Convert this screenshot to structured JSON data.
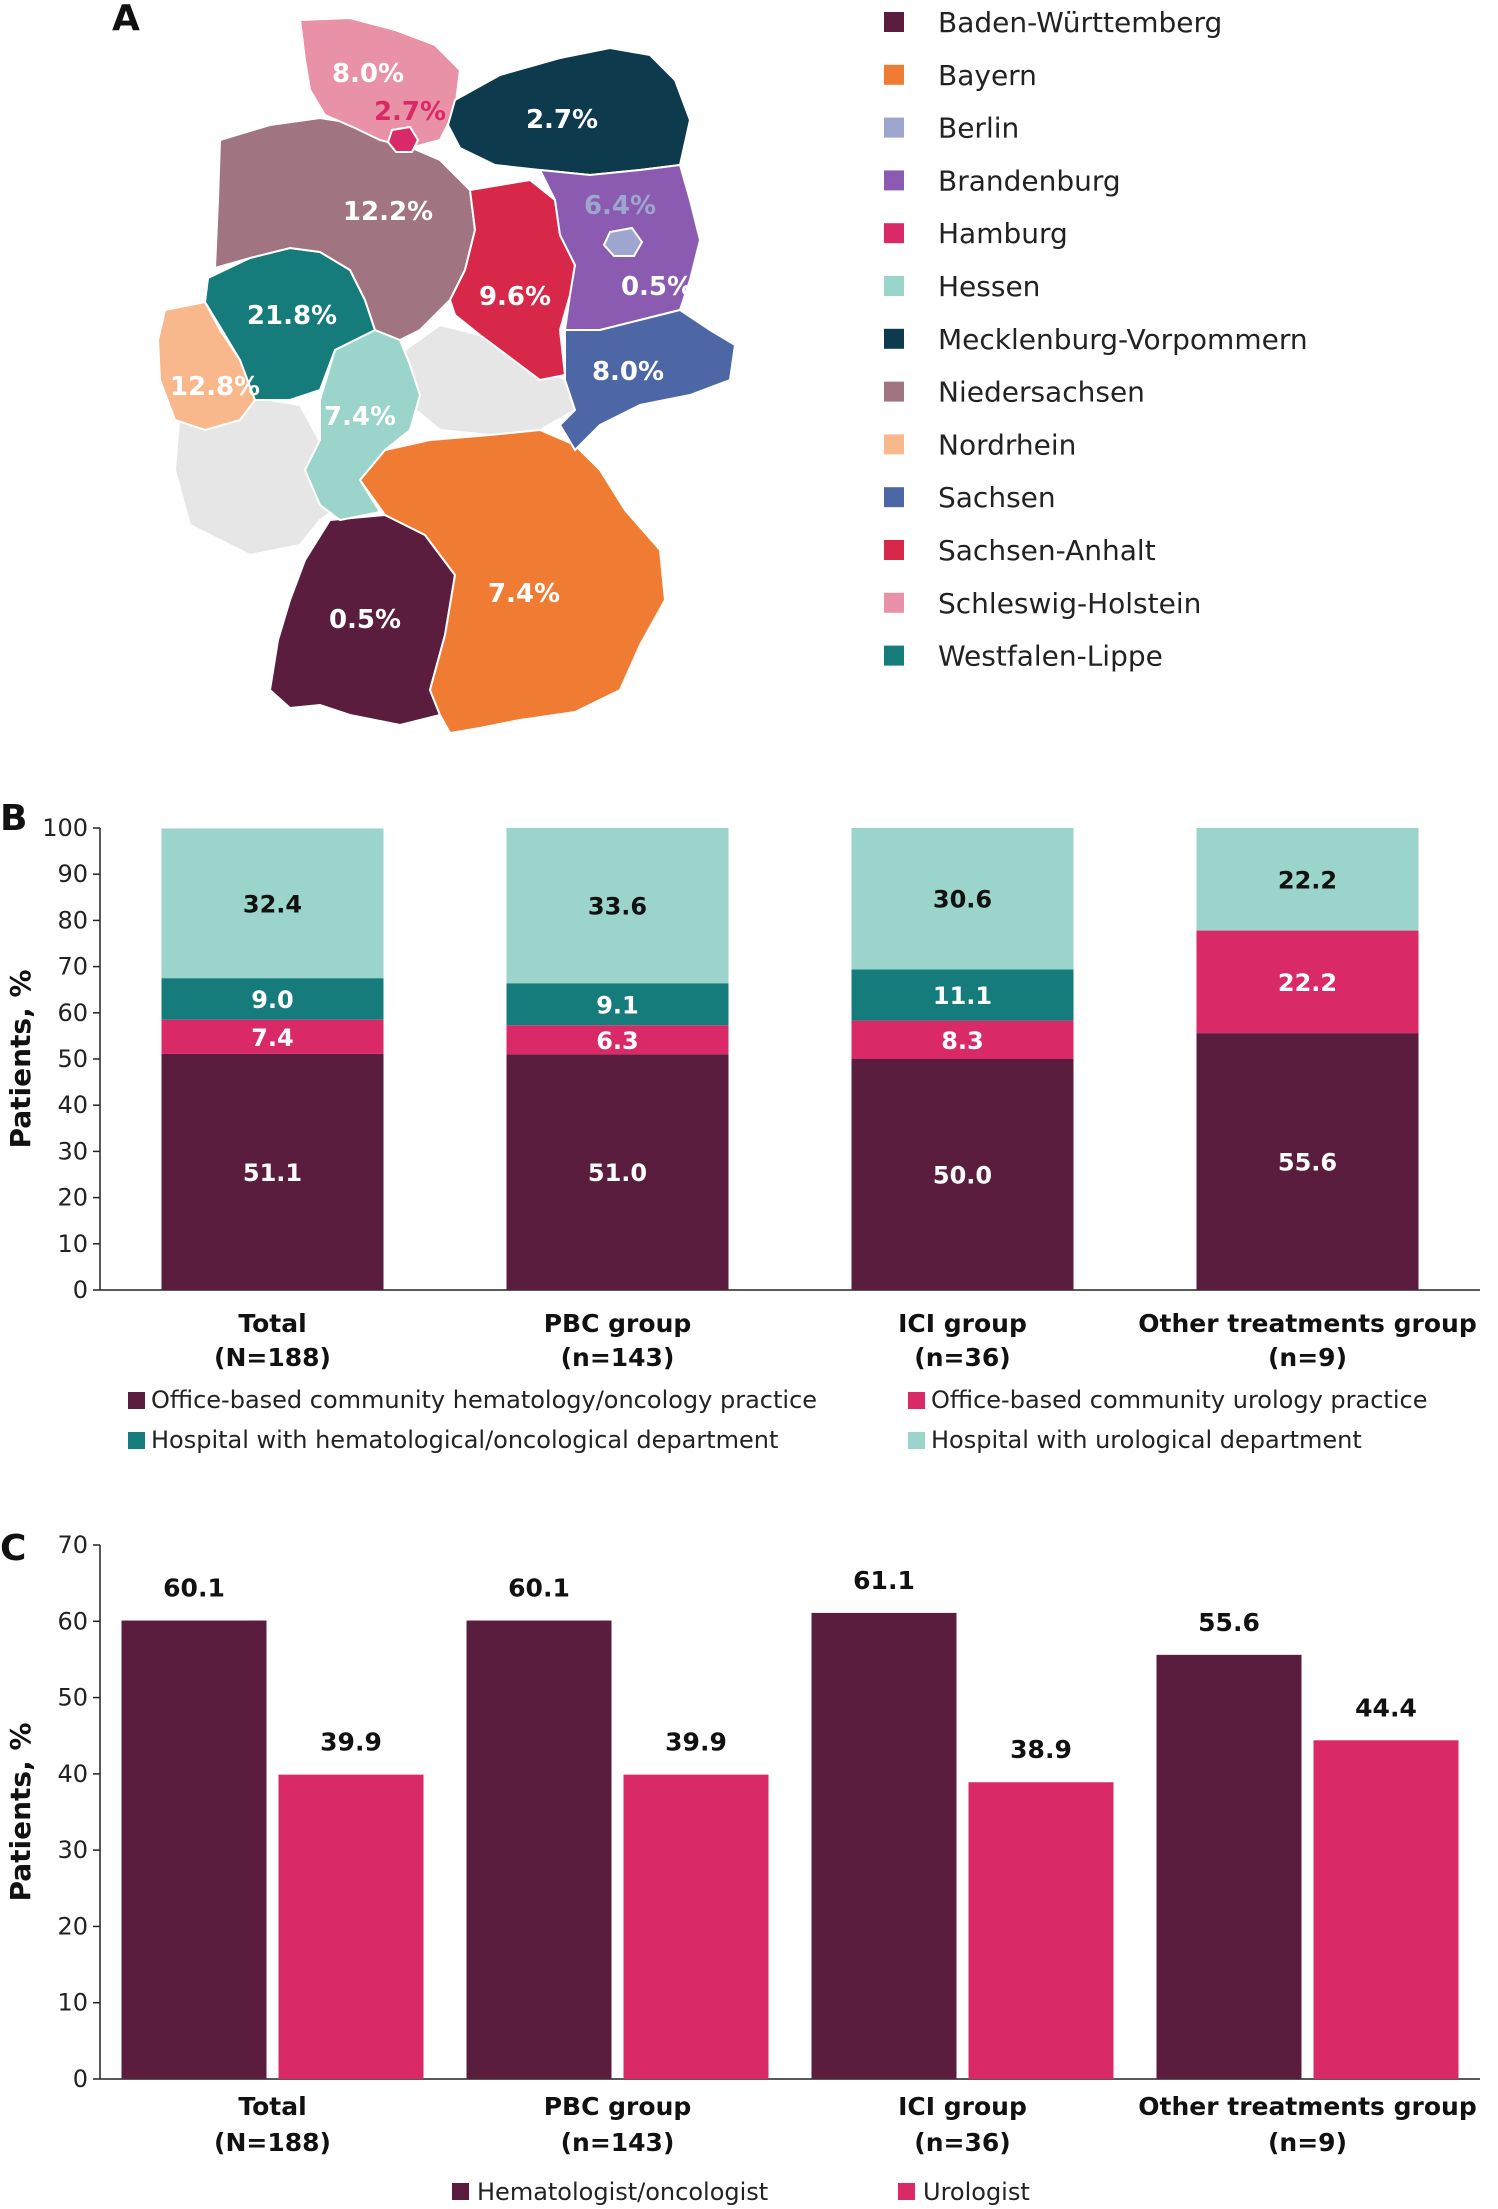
{
  "colors": {
    "baden_wuerttemberg": "#5a1d3e",
    "bayern": "#f07c34",
    "berlin": "#9ea5cf",
    "brandenburg": "#8b5bb1",
    "hamburg": "#d92a67",
    "hessen": "#9ad4cb",
    "mecklenburg": "#0e3a4e",
    "niedersachsen": "#a07480",
    "nordrhein": "#f9b88c",
    "sachsen": "#4d66a5",
    "sachsen_anhalt": "#d8284a",
    "schleswig": "#e991a7",
    "westfalen": "#167b7b",
    "no_data": "#e6e6e6",
    "hema_practice": "#5a1d3e",
    "uro_practice": "#d92a67",
    "hema_hospital": "#167b7b",
    "uro_hospital": "#9ad4cb",
    "hematologist": "#5a1d3e",
    "urologist": "#d92a67"
  },
  "panels": {
    "a": "A",
    "b": "B",
    "c": "C"
  },
  "map": {
    "legend": [
      {
        "name": "Baden-Württemberg",
        "color_key": "baden_wuerttemberg"
      },
      {
        "name": "Bayern",
        "color_key": "bayern"
      },
      {
        "name": "Berlin",
        "color_key": "berlin"
      },
      {
        "name": "Brandenburg",
        "color_key": "brandenburg"
      },
      {
        "name": "Hamburg",
        "color_key": "hamburg"
      },
      {
        "name": "Hessen",
        "color_key": "hessen"
      },
      {
        "name": "Mecklenburg-Vorpommern",
        "color_key": "mecklenburg"
      },
      {
        "name": "Niedersachsen",
        "color_key": "niedersachsen"
      },
      {
        "name": "Nordrhein",
        "color_key": "nordrhein"
      },
      {
        "name": "Sachsen",
        "color_key": "sachsen"
      },
      {
        "name": "Sachsen-Anhalt",
        "color_key": "sachsen_anhalt"
      },
      {
        "name": "Schleswig-Holstein",
        "color_key": "schleswig"
      },
      {
        "name": "Westfalen-Lippe",
        "color_key": "westfalen"
      }
    ],
    "region_values": {
      "schleswig": "8.0%",
      "hamburg": "2.7%",
      "mecklenburg": "2.7%",
      "niedersachsen": "12.2%",
      "berlin": "6.4%",
      "brandenburg": "0.5%",
      "sachsen_anhalt": "9.6%",
      "westfalen": "21.8%",
      "nordrhein": "12.8%",
      "sachsen": "8.0%",
      "hessen": "7.4%",
      "baden_wuerttemberg": "0.5%",
      "bayern": "7.4%"
    }
  },
  "chart_data": [
    {
      "type": "bar",
      "stacked": true,
      "panel": "B",
      "categories": [
        "Total",
        "PBC group",
        "ICI group",
        "Other treatments group"
      ],
      "category_n": [
        "(N=188)",
        "(n=143)",
        "(n=36)",
        "(n=9)"
      ],
      "series": [
        {
          "name": "Office-based community hematology/oncology practice",
          "color_key": "hema_practice",
          "values": [
            51.1,
            51.0,
            50.0,
            55.6
          ],
          "labels": [
            "51.1",
            "51.0",
            "50.0",
            "55.6"
          ]
        },
        {
          "name": "Office-based community urology practice",
          "color_key": "uro_practice",
          "values": [
            7.4,
            6.3,
            8.3,
            22.2
          ],
          "labels": [
            "7.4",
            "6.3",
            "8.3",
            "22.2"
          ]
        },
        {
          "name": "Hospital with hematological/oncological department",
          "color_key": "hema_hospital",
          "values": [
            9.0,
            9.1,
            11.1,
            0
          ],
          "labels": [
            "9.0",
            "9.1",
            "11.1",
            ""
          ]
        },
        {
          "name": "Hospital with urological department",
          "color_key": "uro_hospital",
          "values": [
            32.4,
            33.6,
            30.6,
            22.2
          ],
          "labels": [
            "32.4",
            "33.6",
            "30.6",
            "22.2"
          ]
        }
      ],
      "ylabel": "Patients, %",
      "ylim": [
        0,
        100
      ],
      "yticks": [
        0,
        10,
        20,
        30,
        40,
        50,
        60,
        70,
        80,
        90,
        100
      ],
      "legend_placement": "bottom"
    },
    {
      "type": "bar",
      "stacked": false,
      "panel": "C",
      "categories": [
        "Total",
        "PBC group",
        "ICI group",
        "Other treatments group"
      ],
      "category_n": [
        "(N=188)",
        "(n=143)",
        "(n=36)",
        "(n=9)"
      ],
      "series": [
        {
          "name": "Hematologist/oncologist",
          "color_key": "hematologist",
          "values": [
            60.1,
            60.1,
            61.1,
            55.6
          ],
          "labels": [
            "60.1",
            "60.1",
            "61.1",
            "55.6"
          ]
        },
        {
          "name": "Urologist",
          "color_key": "urologist",
          "values": [
            39.9,
            39.9,
            38.9,
            44.4
          ],
          "labels": [
            "39.9",
            "39.9",
            "38.9",
            "44.4"
          ]
        }
      ],
      "ylabel": "Patients, %",
      "ylim": [
        0,
        70
      ],
      "yticks": [
        0,
        10,
        20,
        30,
        40,
        50,
        60,
        70
      ],
      "legend_placement": "bottom"
    }
  ]
}
